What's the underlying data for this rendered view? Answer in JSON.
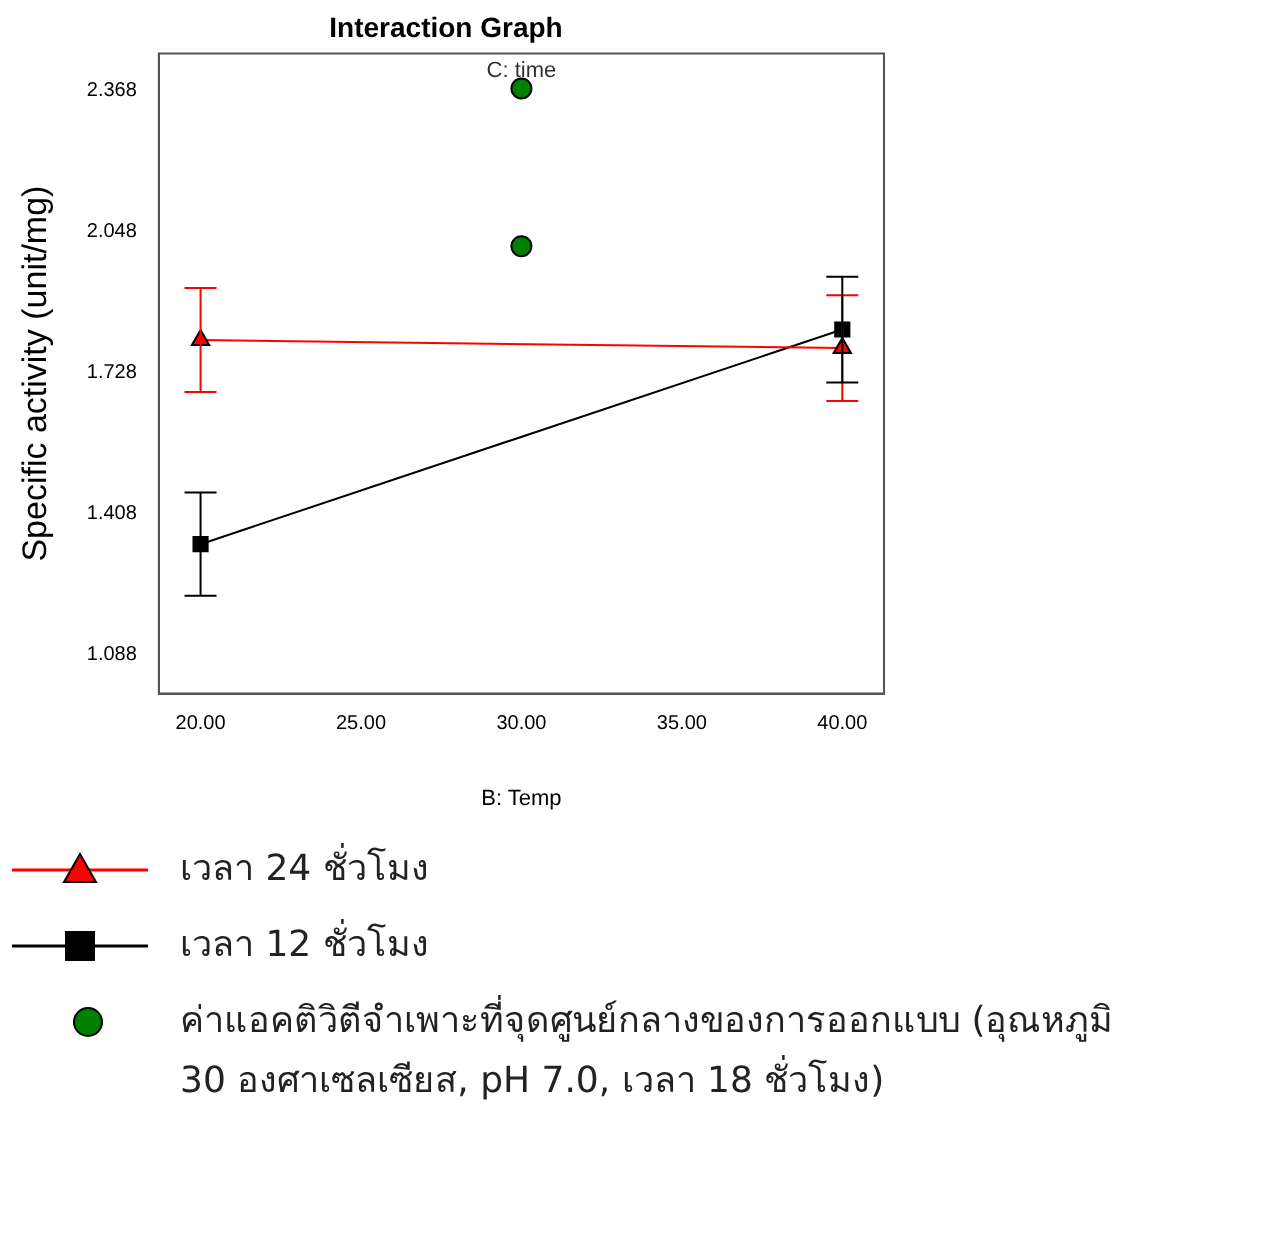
{
  "chart_data": {
    "type": "line",
    "title": "Interaction Graph",
    "legend_title": "C: time",
    "xlabel": "B: Temp",
    "ylabel": "Specific activity (unit/mg)",
    "xlim": [
      18.7,
      41.3
    ],
    "xticks": [
      {
        "value": 20,
        "label": "20.00"
      },
      {
        "value": 25,
        "label": "25.00"
      },
      {
        "value": 30,
        "label": "30.00"
      },
      {
        "value": 35,
        "label": "35.00"
      },
      {
        "value": 40,
        "label": "40.00"
      }
    ],
    "ylim": [
      1.0,
      2.452
    ],
    "yticks": [
      1.088,
      1.408,
      1.728,
      2.048,
      2.368
    ],
    "legend": "bottom",
    "series": [
      {
        "name": "เวลา 24 ชั่วโมง",
        "color": "#ff0000",
        "marker": "triangle",
        "x": [
          20,
          40
        ],
        "values": [
          1.802,
          1.784
        ],
        "errors": [
          0.118,
          0.12
        ]
      },
      {
        "name": "เวลา 12 ชั่วโมง",
        "color": "#000000",
        "marker": "square",
        "x": [
          20,
          40
        ],
        "values": [
          1.339,
          1.826
        ],
        "errors": [
          0.117,
          0.12
        ]
      },
      {
        "name": "ค่าแอคติวิตีจำเพาะที่จุดศูนย์กลางของการออกแบบ (อุณหภูมิ 30 องศาเซลเซียส, pH 7.0, เวลา 18 ชั่วโมง)",
        "type": "scatter",
        "color": "#008000",
        "marker": "circle",
        "x": [
          30,
          30
        ],
        "values": [
          2.373,
          2.015
        ]
      }
    ]
  }
}
